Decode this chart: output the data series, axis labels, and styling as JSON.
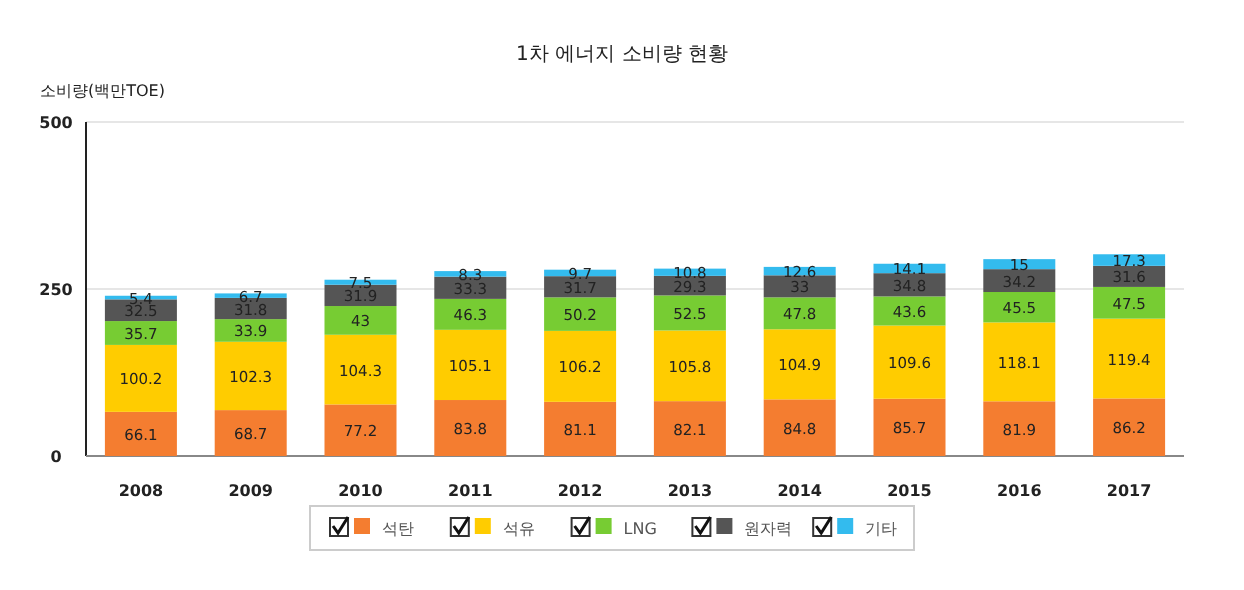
{
  "chart_data": {
    "type": "bar",
    "stacked": true,
    "title": "1차 에너지 소비량 현황",
    "ylabel": "소비량(백만TOE)",
    "categories": [
      "2008",
      "2009",
      "2010",
      "2011",
      "2012",
      "2013",
      "2014",
      "2015",
      "2016",
      "2017"
    ],
    "series": [
      {
        "name": "석탄",
        "color": "#f47d30",
        "values": [
          66.1,
          68.7,
          77.2,
          83.8,
          81.1,
          82.1,
          84.8,
          85.7,
          81.9,
          86.2
        ]
      },
      {
        "name": "석유",
        "color": "#ffcc00",
        "values": [
          100.2,
          102.3,
          104.3,
          105.1,
          106.2,
          105.8,
          104.9,
          109.6,
          118.1,
          119.4
        ]
      },
      {
        "name": "LNG",
        "color": "#77cc33",
        "values": [
          35.7,
          33.9,
          43,
          46.3,
          50.2,
          52.5,
          47.8,
          43.6,
          45.5,
          47.5
        ]
      },
      {
        "name": "원자력",
        "color": "#555555",
        "values": [
          32.5,
          31.8,
          31.9,
          33.3,
          31.7,
          29.3,
          33,
          34.8,
          34.2,
          31.6
        ]
      },
      {
        "name": "기타",
        "color": "#33bbee",
        "values": [
          5.4,
          6.7,
          7.5,
          8.3,
          9.7,
          10.8,
          12.6,
          14.1,
          15,
          17.3
        ]
      }
    ],
    "ylim": [
      0,
      500
    ],
    "yticks": [
      0,
      250,
      500
    ],
    "grid": "y",
    "legend": "bottom",
    "data_labels": true
  }
}
